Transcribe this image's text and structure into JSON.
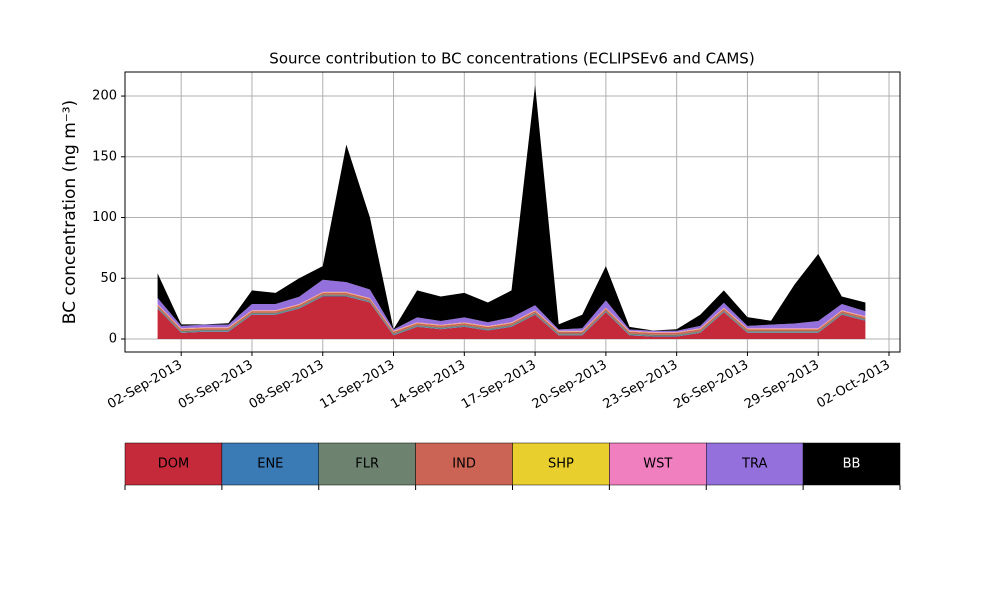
{
  "chart_data": {
    "type": "stacked_area",
    "title": "Source contribution to BC concentrations (ECLIPSEv6 and CAMS)",
    "y_label": "BC concentration (ng m⁻³)",
    "x": [
      "2013-09-01",
      "2013-09-02",
      "2013-09-03",
      "2013-09-04",
      "2013-09-05",
      "2013-09-06",
      "2013-09-07",
      "2013-09-08",
      "2013-09-09",
      "2013-09-10",
      "2013-09-11",
      "2013-09-12",
      "2013-09-13",
      "2013-09-14",
      "2013-09-15",
      "2013-09-16",
      "2013-09-17",
      "2013-09-18",
      "2013-09-19",
      "2013-09-20",
      "2013-09-21",
      "2013-09-22",
      "2013-09-23",
      "2013-09-24",
      "2013-09-25",
      "2013-09-26",
      "2013-09-27",
      "2013-09-28",
      "2013-09-29",
      "2013-09-30",
      "2013-10-01"
    ],
    "series": [
      {
        "name": "DOM",
        "color": "#c52a3a",
        "values": [
          25,
          5,
          6,
          6,
          20,
          20,
          25,
          35,
          35,
          30,
          3,
          10,
          8,
          10,
          7,
          10,
          20,
          3,
          3,
          22,
          3,
          2,
          2,
          5,
          22,
          5,
          5,
          5,
          5,
          20,
          15
        ]
      },
      {
        "name": "ENE",
        "color": "#3a7ab5",
        "values": [
          0.5,
          0.5,
          0.5,
          0.5,
          0.5,
          0.5,
          0.5,
          0.5,
          0.5,
          0.5,
          0.5,
          0.5,
          0.5,
          0.5,
          0.5,
          0.5,
          0.5,
          0.5,
          0.5,
          0.5,
          0.5,
          0.5,
          0.5,
          0.5,
          0.5,
          0.5,
          0.5,
          0.5,
          0.5,
          0.5,
          0.5
        ]
      },
      {
        "name": "FLR",
        "color": "#6e8270",
        "values": [
          1,
          1,
          1,
          1,
          1,
          1,
          1,
          1,
          1,
          1,
          1,
          1,
          1,
          1,
          1,
          1,
          1,
          1,
          1,
          1,
          1,
          1,
          1,
          1,
          1,
          1,
          1,
          1,
          1,
          1,
          1
        ]
      },
      {
        "name": "IND",
        "color": "#cb6454",
        "values": [
          1.5,
          1.5,
          1.5,
          1.5,
          1.5,
          1.5,
          1.5,
          1.5,
          1.5,
          1.5,
          1.5,
          1.5,
          1.5,
          1.5,
          1.5,
          1.5,
          1.5,
          1.5,
          1.5,
          1.5,
          1.5,
          1.5,
          1.5,
          1.5,
          1.5,
          1.5,
          1.5,
          1.5,
          1.5,
          1.5,
          1.5
        ]
      },
      {
        "name": "SHP",
        "color": "#e8cf2e",
        "values": [
          0.3,
          0.3,
          0.3,
          0.3,
          0.3,
          0.3,
          0.3,
          0.3,
          0.3,
          0.3,
          0.3,
          0.3,
          0.3,
          0.3,
          0.3,
          0.3,
          0.3,
          0.3,
          0.3,
          0.3,
          0.3,
          0.3,
          0.3,
          0.3,
          0.3,
          0.3,
          0.3,
          0.3,
          0.3,
          0.3,
          0.3
        ]
      },
      {
        "name": "WST",
        "color": "#f07fc0",
        "values": [
          0.5,
          0.5,
          0.5,
          0.5,
          0.5,
          0.5,
          0.5,
          0.5,
          0.5,
          0.5,
          0.5,
          0.5,
          0.5,
          0.5,
          0.5,
          0.5,
          0.5,
          0.5,
          0.5,
          0.5,
          0.5,
          0.5,
          0.5,
          0.5,
          0.5,
          0.5,
          0.5,
          0.5,
          0.5,
          0.5,
          0.5
        ]
      },
      {
        "name": "TRA",
        "color": "#9370db",
        "values": [
          5,
          2,
          2,
          2,
          5,
          5,
          6,
          10,
          8,
          7,
          1,
          4,
          3,
          4,
          3,
          4,
          4,
          1,
          2,
          6,
          1,
          1,
          1,
          2,
          4,
          2,
          3,
          4,
          6,
          5,
          4
        ]
      },
      {
        "name": "BB",
        "color": "#000000",
        "values": [
          20.2,
          1.2,
          0.2,
          1.2,
          11.2,
          9.2,
          15.2,
          11.2,
          113.2,
          59.2,
          0.2,
          22.2,
          20.2,
          20.2,
          16.2,
          22.2,
          181.2,
          4.2,
          11.2,
          28.2,
          2.2,
          0.2,
          1.2,
          9.2,
          10.2,
          7.2,
          3.2,
          32.2,
          55.2,
          6.2,
          7.2
        ]
      }
    ],
    "xlim": [
      "2013-08-31",
      "2013-10-02"
    ],
    "xticks": [
      {
        "value": "2013-09-02",
        "label": "02-Sep-2013"
      },
      {
        "value": "2013-09-05",
        "label": "05-Sep-2013"
      },
      {
        "value": "2013-09-08",
        "label": "08-Sep-2013"
      },
      {
        "value": "2013-09-11",
        "label": "11-Sep-2013"
      },
      {
        "value": "2013-09-14",
        "label": "14-Sep-2013"
      },
      {
        "value": "2013-09-17",
        "label": "17-Sep-2013"
      },
      {
        "value": "2013-09-20",
        "label": "20-Sep-2013"
      },
      {
        "value": "2013-09-23",
        "label": "23-Sep-2013"
      },
      {
        "value": "2013-09-26",
        "label": "26-Sep-2013"
      },
      {
        "value": "2013-09-29",
        "label": "29-Sep-2013"
      },
      {
        "value": "2013-10-02",
        "label": "02-Oct-2013"
      }
    ],
    "ylim": [
      -10.7,
      219.8
    ],
    "yticks": [
      0,
      50,
      100,
      150,
      200
    ],
    "grid": true
  }
}
